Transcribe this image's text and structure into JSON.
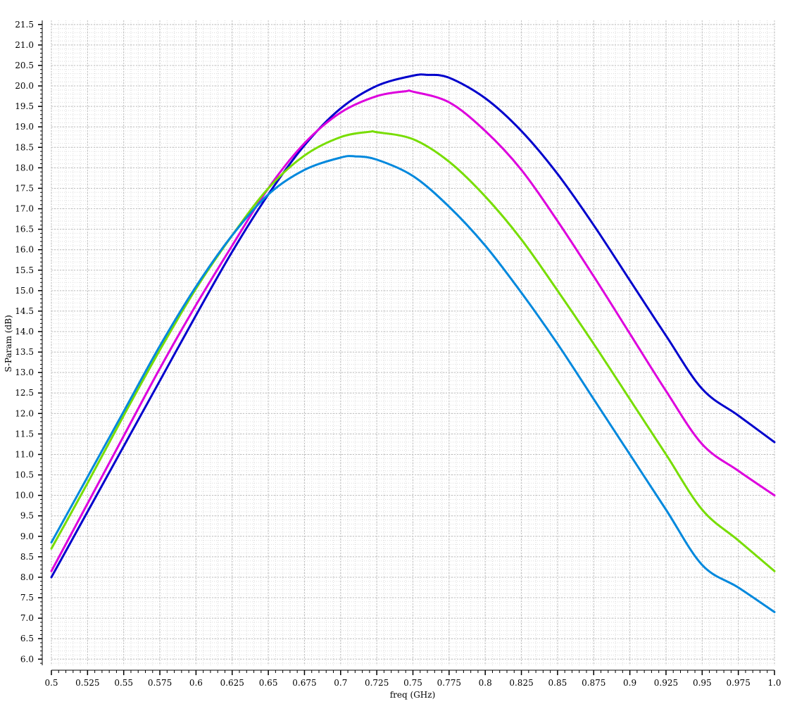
{
  "chart_data": {
    "type": "line",
    "title": "",
    "xlabel": "freq (GHz)",
    "ylabel": "S-Param (dB)",
    "xlim": [
      0.5,
      1.0
    ],
    "ylim": [
      5.85,
      21.6
    ],
    "grid": true,
    "legend": "none",
    "x_ticks": [
      "0.5",
      "0.525",
      "0.55",
      "0.575",
      "0.6",
      "0.625",
      "0.65",
      "0.675",
      "0.7",
      "0.725",
      "0.75",
      "0.775",
      "0.8",
      "0.825",
      "0.85",
      "0.875",
      "0.9",
      "0.925",
      "0.95",
      "0.975",
      "1.0"
    ],
    "y_ticks": [
      "6.0",
      "6.5",
      "7.0",
      "7.5",
      "8.0",
      "8.5",
      "9.0",
      "9.5",
      "10.0",
      "10.5",
      "11.0",
      "11.5",
      "12.0",
      "12.5",
      "13.0",
      "13.5",
      "14.0",
      "14.5",
      "15.0",
      "15.5",
      "16.0",
      "16.5",
      "17.0",
      "17.5",
      "18.0",
      "18.5",
      "19.0",
      "19.5",
      "20.0",
      "20.5",
      "21.0",
      "21.5"
    ],
    "series": [
      {
        "color": "#0000cc",
        "x": [
          0.5,
          0.525,
          0.55,
          0.575,
          0.6,
          0.625,
          0.65,
          0.675,
          0.7,
          0.725,
          0.75,
          0.76,
          0.775,
          0.8,
          0.825,
          0.85,
          0.875,
          0.9,
          0.925,
          0.95,
          0.975,
          1.0
        ],
        "y": [
          8.0,
          9.6,
          11.2,
          12.8,
          14.4,
          15.95,
          17.35,
          18.55,
          19.45,
          20.0,
          20.25,
          20.27,
          20.2,
          19.7,
          18.9,
          17.85,
          16.6,
          15.25,
          13.9,
          12.6,
          11.95,
          11.3
        ]
      },
      {
        "color": "#dd00dd",
        "x": [
          0.5,
          0.525,
          0.55,
          0.575,
          0.6,
          0.625,
          0.65,
          0.675,
          0.7,
          0.725,
          0.745,
          0.75,
          0.775,
          0.8,
          0.825,
          0.85,
          0.875,
          0.9,
          0.925,
          0.95,
          0.975,
          1.0
        ],
        "y": [
          8.15,
          9.8,
          11.45,
          13.1,
          14.65,
          16.1,
          17.5,
          18.6,
          19.35,
          19.75,
          19.87,
          19.86,
          19.6,
          18.9,
          17.95,
          16.7,
          15.35,
          13.95,
          12.55,
          11.25,
          10.6,
          10.0
        ]
      },
      {
        "color": "#77dd00",
        "x": [
          0.5,
          0.525,
          0.55,
          0.575,
          0.6,
          0.625,
          0.65,
          0.675,
          0.7,
          0.72,
          0.725,
          0.75,
          0.775,
          0.8,
          0.825,
          0.85,
          0.875,
          0.9,
          0.925,
          0.95,
          0.975,
          1.0
        ],
        "y": [
          8.7,
          10.3,
          11.95,
          13.55,
          15.05,
          16.35,
          17.5,
          18.3,
          18.75,
          18.88,
          18.87,
          18.7,
          18.15,
          17.3,
          16.25,
          15.0,
          13.7,
          12.35,
          11.0,
          9.65,
          8.9,
          8.15
        ]
      },
      {
        "color": "#0088dd",
        "x": [
          0.5,
          0.525,
          0.55,
          0.575,
          0.6,
          0.625,
          0.65,
          0.675,
          0.7,
          0.71,
          0.725,
          0.75,
          0.775,
          0.8,
          0.825,
          0.85,
          0.875,
          0.9,
          0.925,
          0.95,
          0.975,
          1.0
        ],
        "y": [
          8.85,
          10.45,
          12.05,
          13.65,
          15.1,
          16.35,
          17.35,
          17.95,
          18.25,
          18.28,
          18.2,
          17.8,
          17.05,
          16.1,
          14.95,
          13.7,
          12.35,
          11.0,
          9.65,
          8.3,
          7.75,
          7.15
        ]
      }
    ]
  }
}
